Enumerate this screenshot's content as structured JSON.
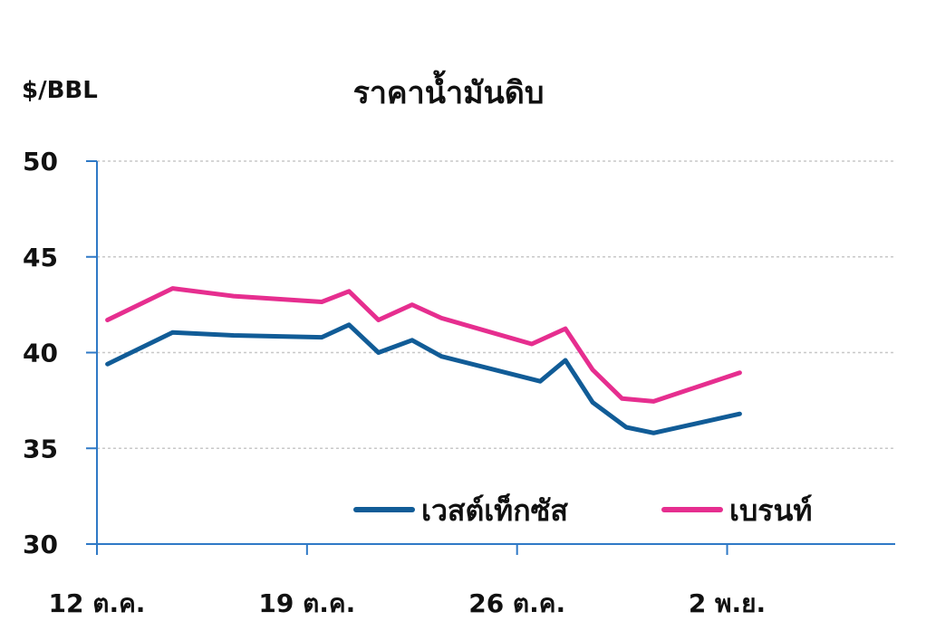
{
  "chart_data": {
    "type": "line",
    "title": "ราคาน้ำมันดิบ",
    "ylabel": "$/BBL",
    "ylim": [
      30,
      50
    ],
    "yticks": [
      "30",
      "35",
      "40",
      "45",
      "50"
    ],
    "xlim": [
      0,
      38
    ],
    "xticks": [
      {
        "label": "12 ต.ค.",
        "x": 0
      },
      {
        "label": "19 ต.ค.",
        "x": 10
      },
      {
        "label": "26 ต.ค.",
        "x": 20
      },
      {
        "label": "2 พ.ย.",
        "x": 30
      }
    ],
    "grid": true,
    "legend": "bottom-right",
    "series": [
      {
        "name": "เวสต์เท็กซัส",
        "color": "#115c97",
        "points": [
          [
            0.5,
            39.4
          ],
          [
            3.6,
            41.05
          ],
          [
            6.5,
            40.9
          ],
          [
            10.7,
            40.8
          ],
          [
            12.0,
            41.45
          ],
          [
            13.4,
            40.0
          ],
          [
            15.0,
            40.65
          ],
          [
            16.4,
            39.8
          ],
          [
            21.1,
            38.5
          ],
          [
            22.3,
            39.6
          ],
          [
            23.6,
            37.4
          ],
          [
            25.2,
            36.1
          ],
          [
            26.5,
            35.8
          ],
          [
            30.6,
            36.8
          ]
        ]
      },
      {
        "name": "เบรนท์",
        "color": "#e62e8f",
        "points": [
          [
            0.5,
            41.7
          ],
          [
            3.6,
            43.35
          ],
          [
            6.5,
            42.95
          ],
          [
            10.7,
            42.65
          ],
          [
            12.0,
            43.2
          ],
          [
            13.4,
            41.7
          ],
          [
            15.0,
            42.5
          ],
          [
            16.4,
            41.8
          ],
          [
            20.7,
            40.45
          ],
          [
            22.3,
            41.25
          ],
          [
            23.6,
            39.1
          ],
          [
            25.0,
            37.6
          ],
          [
            26.5,
            37.45
          ],
          [
            30.6,
            38.95
          ]
        ]
      }
    ]
  }
}
